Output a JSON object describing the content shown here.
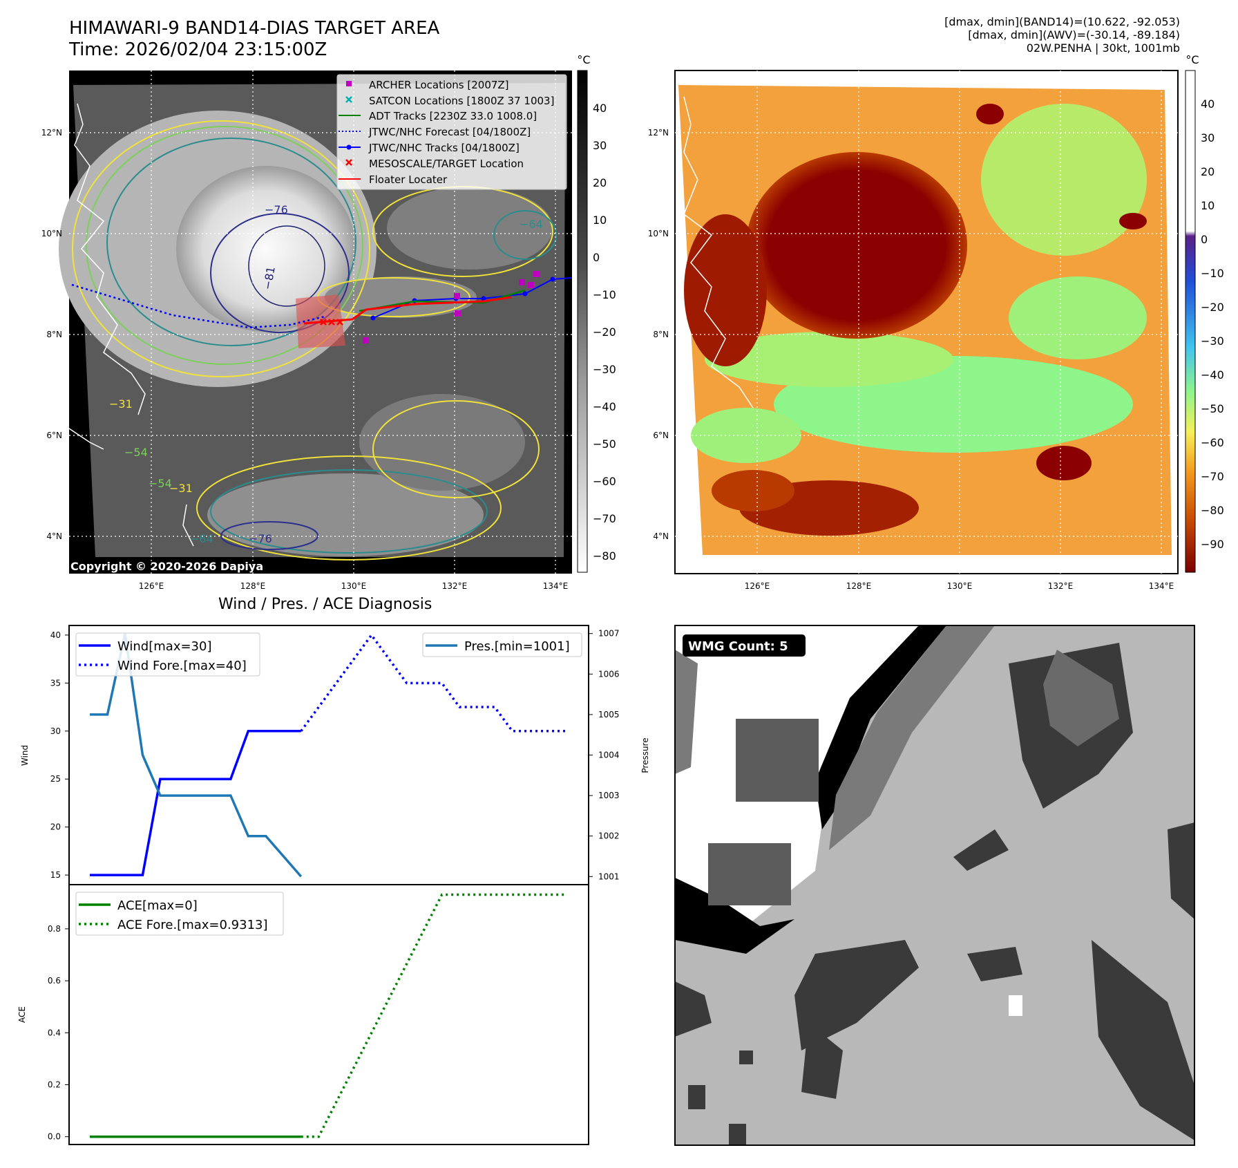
{
  "header": {
    "title_line1": "HIMAWARI-9 BAND14-DIAS TARGET AREA",
    "title_line2": "Time: 2026/02/04 23:15:00Z",
    "info_line1": "[dmax, dmin](BAND14)=(10.622, -92.053)",
    "info_line2": "[dmax, dmin](AWV)=(-30.14, -89.184)",
    "info_line3": "02W.PENHA | 30kt, 1001mb"
  },
  "map_panel": {
    "copyright": "Copyright © 2020-2026 Dapiya",
    "unit": "°C",
    "lon_labels": [
      "126°E",
      "128°E",
      "130°E",
      "132°E",
      "134°E"
    ],
    "lat_labels": [
      "12°N",
      "10°N",
      "8°N",
      "6°N",
      "4°N"
    ],
    "colorbar_ticks": [
      "40",
      "30",
      "20",
      "10",
      "0",
      "−10",
      "−20",
      "−30",
      "−40",
      "−50",
      "−60",
      "−70",
      "−80"
    ],
    "contour_labels": [
      "−76",
      "−81",
      "−64",
      "−54",
      "−31",
      "−76",
      "−64",
      "−54",
      "−31"
    ],
    "legend": [
      {
        "label": "ARCHER Locations [2007Z]",
        "color": "#c000c0",
        "marker": "square"
      },
      {
        "label": "SATCON Locations [1800Z 37 1003]",
        "color": "#00b0b0",
        "marker": "x"
      },
      {
        "label": "ADT Tracks [2230Z 33.0 1008.0]",
        "color": "#008000",
        "marker": "line"
      },
      {
        "label": "JTWC/NHC Forecast [04/1800Z]",
        "color": "#0000ff",
        "marker": "dotted"
      },
      {
        "label": "JTWC/NHC Tracks [04/1800Z]",
        "color": "#0000ff",
        "marker": "line-dot"
      },
      {
        "label": "MESOSCALE/TARGET Location",
        "color": "#ff0000",
        "marker": "x"
      },
      {
        "label": "Floater Locater",
        "color": "#ff0000",
        "marker": "line"
      }
    ]
  },
  "awv_panel": {
    "unit": "°C",
    "lon_labels": [
      "126°E",
      "128°E",
      "130°E",
      "132°E",
      "134°E"
    ],
    "lat_labels": [
      "12°N",
      "10°N",
      "8°N",
      "6°N",
      "4°N"
    ],
    "colorbar_ticks": [
      "40",
      "30",
      "20",
      "10",
      "0",
      "−10",
      "−20",
      "−30",
      "−40",
      "−50",
      "−60",
      "−70",
      "−80",
      "−90"
    ]
  },
  "wmg_panel": {
    "label": "WMG Count: 5"
  },
  "chart_data": [
    {
      "type": "line",
      "title": "Wind / Pres. / ACE Diagnosis",
      "ylabel": "Wind",
      "ylabel_right": "Pressure",
      "ylim": [
        14,
        41
      ],
      "ylim_right": [
        1000.8,
        1007.2
      ],
      "yticks": [
        15,
        20,
        25,
        30,
        35,
        40
      ],
      "yticks_right": [
        1001,
        1002,
        1003,
        1004,
        1005,
        1006,
        1007
      ],
      "series": [
        {
          "name": "Wind[max=30]",
          "color": "#0000ff",
          "style": "solid",
          "axis": "left",
          "x": [
            0,
            3,
            4,
            8,
            9,
            12
          ],
          "y": [
            15,
            15,
            25,
            25,
            30,
            30
          ]
        },
        {
          "name": "Wind Fore.[max=40]",
          "color": "#0000ff",
          "style": "dotted",
          "axis": "left",
          "x": [
            12,
            16,
            18,
            20,
            21,
            23,
            24,
            27
          ],
          "y": [
            30,
            40,
            35,
            35,
            32.5,
            32.5,
            30,
            30
          ]
        },
        {
          "name": "Pres.[min=1001]",
          "color": "#1f77b4",
          "style": "solid",
          "axis": "right",
          "x": [
            0,
            1,
            2,
            3,
            4,
            8,
            9,
            10,
            12
          ],
          "y": [
            1005,
            1005,
            1007,
            1004,
            1003,
            1003,
            1002,
            1002,
            1001
          ]
        }
      ]
    },
    {
      "type": "line",
      "ylabel": "ACE",
      "ylim": [
        -0.03,
        0.97
      ],
      "yticks": [
        0.0,
        0.2,
        0.4,
        0.6,
        0.8
      ],
      "series": [
        {
          "name": "ACE[max=0]",
          "color": "#008000",
          "style": "solid",
          "x": [
            0,
            12
          ],
          "y": [
            0,
            0
          ]
        },
        {
          "name": "ACE Fore.[max=0.9313]",
          "color": "#008000",
          "style": "dotted",
          "x": [
            12,
            13,
            20,
            27
          ],
          "y": [
            0,
            0,
            0.9313,
            0.9313
          ]
        }
      ]
    }
  ]
}
